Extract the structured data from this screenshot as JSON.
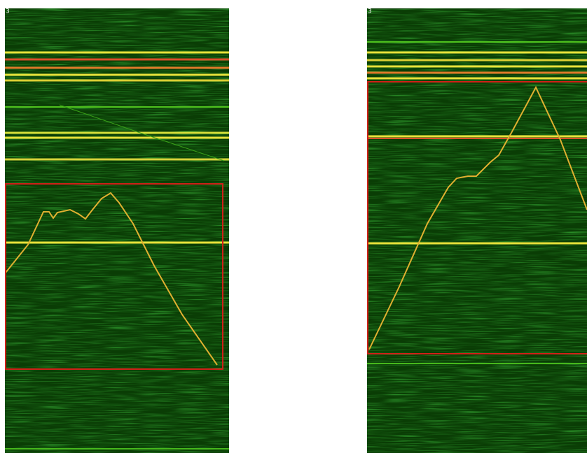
{
  "panels": [
    {
      "label": "3"
    },
    {
      "label": "3"
    }
  ]
}
